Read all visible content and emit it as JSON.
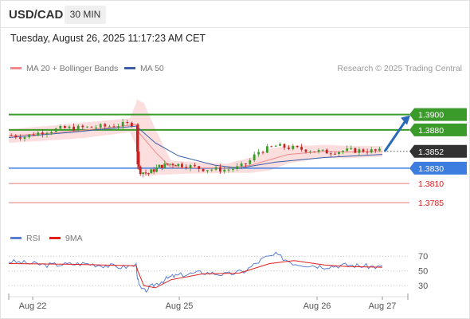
{
  "header": {
    "pair": "USD/CAD",
    "timeframe": "30 MIN",
    "datetime": "Tuesday, August 26, 2025 11:17:23 AM CET"
  },
  "legend": {
    "ma20_label": "MA 20 + Bollinger Bands",
    "ma20_color": "#f08a8a",
    "ma50_label": "MA 50",
    "ma50_color": "#3a5fa8",
    "credit": "Research © 2025 Trading Central"
  },
  "rsi_legend": {
    "rsi_label": "RSI",
    "rsi_color": "#5b7fd6",
    "ma_label": "9MA",
    "ma_color": "#e01e1e"
  },
  "colors": {
    "bull": "#3a9a2a",
    "bear": "#c72222",
    "resistance": "#3a9a2a",
    "support": "#3d7de0",
    "support_minor": "#e06060",
    "current": "#333333",
    "arrow": "#2a6ab8",
    "bands": "#fcdede"
  },
  "chart_data": {
    "type": "candlestick",
    "symbol": "USD/CAD",
    "interval": "30 MIN",
    "x_ticks": [
      "Aug 22",
      "Aug 25",
      "Aug 26",
      "Aug 27"
    ],
    "x_tick_positions": [
      0,
      2,
      4,
      5
    ],
    "ylim": [
      1.3755,
      1.3935
    ],
    "current_price": "1.3852",
    "levels": [
      {
        "value": 1.39,
        "label": "1.3900",
        "kind": "resistance"
      },
      {
        "value": 1.388,
        "label": "1.3880",
        "kind": "resistance"
      },
      {
        "value": 1.3852,
        "label": "1.3852",
        "kind": "current"
      },
      {
        "value": 1.383,
        "label": "1.3830",
        "kind": "pivot"
      },
      {
        "value": 1.381,
        "label": "1.3810",
        "kind": "support"
      },
      {
        "value": 1.3785,
        "label": "1.3785",
        "kind": "support"
      }
    ],
    "forecast": {
      "from": 1.3852,
      "to": 1.39,
      "direction": "up"
    },
    "price_path": [
      [
        0,
        1.3873
      ],
      [
        0.12,
        1.3871
      ],
      [
        0.25,
        1.3877
      ],
      [
        0.42,
        1.3882
      ],
      [
        0.6,
        1.3883
      ],
      [
        0.8,
        1.3885
      ],
      [
        0.95,
        1.3888
      ],
      [
        1.0,
        1.3888
      ],
      [
        1.03,
        1.3858
      ],
      [
        1.06,
        1.3832
      ],
      [
        1.1,
        1.3826
      ],
      [
        1.2,
        1.3823
      ],
      [
        1.35,
        1.3832
      ],
      [
        1.5,
        1.3836
      ],
      [
        1.65,
        1.3834
      ],
      [
        1.8,
        1.3829
      ],
      [
        2.0,
        1.3828
      ],
      [
        2.1,
        1.3831
      ],
      [
        2.18,
        1.3838
      ],
      [
        2.25,
        1.3851
      ],
      [
        2.4,
        1.3859
      ],
      [
        2.6,
        1.3855
      ],
      [
        2.8,
        1.3851
      ],
      [
        3.0,
        1.3853
      ],
      [
        3.15,
        1.3853
      ],
      [
        3.3,
        1.3852
      ]
    ],
    "ma20": [
      [
        0,
        1.3872
      ],
      [
        0.5,
        1.3878
      ],
      [
        1.0,
        1.3887
      ],
      [
        1.05,
        1.3878
      ],
      [
        1.3,
        1.3851
      ],
      [
        1.5,
        1.3831
      ],
      [
        2.0,
        1.383
      ],
      [
        2.2,
        1.3834
      ],
      [
        2.5,
        1.3848
      ],
      [
        2.8,
        1.3852
      ],
      [
        3.0,
        1.3851
      ],
      [
        3.3,
        1.3852
      ]
    ],
    "ma50": [
      [
        0,
        1.387
      ],
      [
        0.5,
        1.3877
      ],
      [
        1.0,
        1.3885
      ],
      [
        1.3,
        1.3863
      ],
      [
        1.6,
        1.3846
      ],
      [
        1.9,
        1.3834
      ],
      [
        2.1,
        1.383
      ],
      [
        2.4,
        1.3838
      ],
      [
        2.8,
        1.3844
      ],
      [
        3.3,
        1.3848
      ]
    ],
    "rsi": {
      "levels": [
        "70",
        "50",
        "30"
      ],
      "level_values": [
        70,
        50,
        30
      ],
      "ylim": [
        15,
        80
      ],
      "rsi": [
        [
          0,
          63
        ],
        [
          0.3,
          58
        ],
        [
          0.6,
          60
        ],
        [
          0.9,
          55
        ],
        [
          1.0,
          58
        ],
        [
          1.03,
          45
        ],
        [
          1.08,
          30
        ],
        [
          1.15,
          22
        ],
        [
          1.3,
          32
        ],
        [
          1.5,
          42
        ],
        [
          1.8,
          48
        ],
        [
          2.0,
          45
        ],
        [
          2.15,
          50
        ],
        [
          2.3,
          67
        ],
        [
          2.4,
          72
        ],
        [
          2.55,
          60
        ],
        [
          2.8,
          56
        ],
        [
          3.0,
          58
        ],
        [
          3.3,
          55
        ]
      ],
      "ma9": [
        [
          0,
          60
        ],
        [
          0.5,
          59
        ],
        [
          1.0,
          57
        ],
        [
          1.05,
          50
        ],
        [
          1.15,
          30
        ],
        [
          1.3,
          27
        ],
        [
          1.5,
          38
        ],
        [
          1.8,
          46
        ],
        [
          2.1,
          47
        ],
        [
          2.35,
          60
        ],
        [
          2.55,
          64
        ],
        [
          2.8,
          58
        ],
        [
          3.0,
          56
        ],
        [
          3.3,
          55
        ]
      ]
    }
  }
}
